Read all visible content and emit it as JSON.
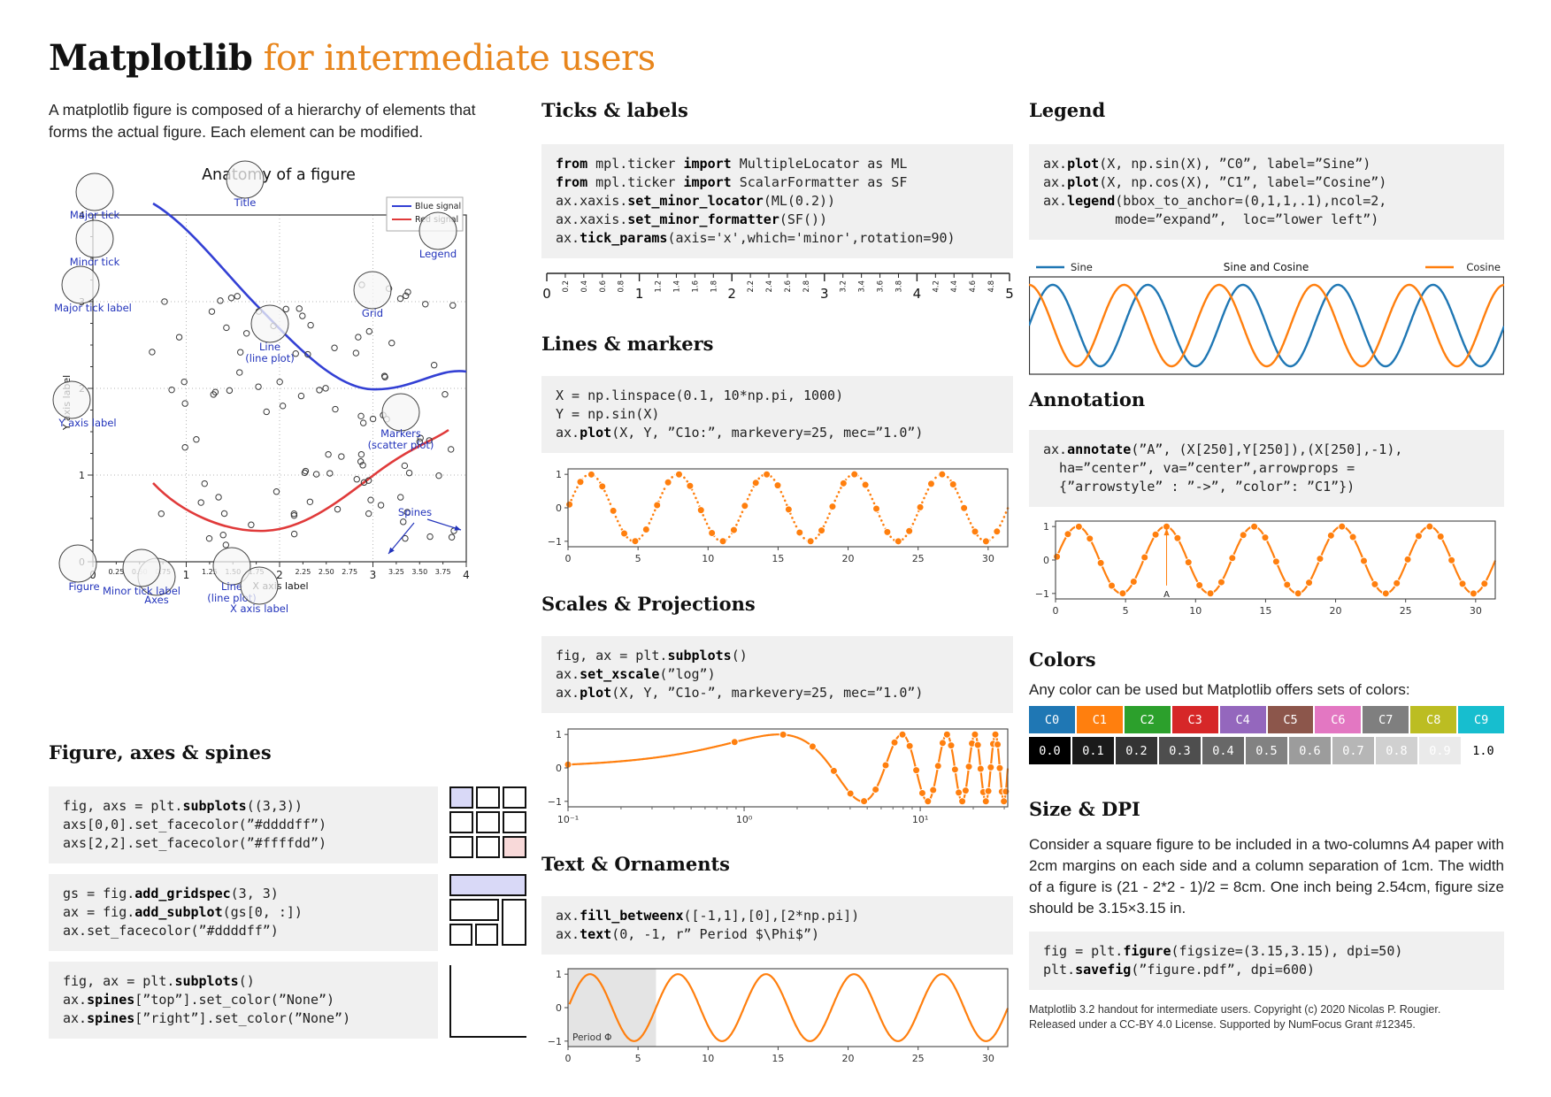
{
  "page": {
    "title_bold": "Matplotlib",
    "title_rest": " for intermediate users",
    "accent_color": "#e8861d",
    "intro": "A matplotlib figure is composed of a hierarchy of elements that forms the actual figure. Each element can be modified."
  },
  "anatomy": {
    "title": "Anatomy of a figure",
    "legend_entries": {
      "blue": "Blue signal",
      "red": "Red signal"
    },
    "legend_colors": {
      "blue": "#3340d4",
      "red": "#e03a3a"
    },
    "xlabel": "X axis label",
    "ylabel": "Y axis label",
    "x_major": [
      "0",
      "1",
      "2",
      "3",
      "4"
    ],
    "x_minor": [
      "0.25",
      "0.50",
      "0.75",
      "1.25",
      "1.50",
      "1.75",
      "2.25",
      "2.50",
      "2.75",
      "3.25",
      "3.50",
      "3.75"
    ],
    "y_major": [
      "4",
      "3",
      "2",
      "1",
      "0"
    ],
    "callouts": {
      "title": "Title",
      "major_tick": "Major tick",
      "minor_tick": "Minor tick",
      "major_tick_label": "Major tick label",
      "y_axis_label": "Y axis label",
      "figure": "Figure",
      "axes": "Axes",
      "line_red": [
        "Line",
        "(line plot)"
      ],
      "line_blue": [
        "Line",
        "(line plot)"
      ],
      "markers": [
        "Markers",
        "(scatter plot)"
      ],
      "grid": "Grid",
      "legend": "Legend",
      "spines": "Spines",
      "minor_tick_label": "Minor tick label",
      "x_axis_label": "X axis label"
    }
  },
  "sections": {
    "fas": {
      "heading": "Figure, axes & spines",
      "blocks": [
        [
          [
            [
              "fig, axs = plt.",
              0
            ],
            [
              "subplots",
              1
            ],
            [
              "((3,3))",
              0
            ]
          ],
          [
            [
              "axs[0,0].set_facecolor(”#ddddff”)",
              0
            ]
          ],
          [
            [
              "axs[2,2].set_facecolor(”#ffffdd”)",
              0
            ]
          ]
        ],
        [
          [
            [
              "gs = fig.",
              0
            ],
            [
              "add_gridspec",
              1
            ],
            [
              "(3, 3)",
              0
            ]
          ],
          [
            [
              "ax = fig.",
              0
            ],
            [
              "add_subplot",
              1
            ],
            [
              "(gs[0, :])",
              0
            ]
          ],
          [
            [
              "ax.set_facecolor(”#ddddff”)",
              0
            ]
          ]
        ],
        [
          [
            [
              "fig, ax = plt.",
              0
            ],
            [
              "subplots",
              1
            ],
            [
              "()",
              0
            ]
          ],
          [
            [
              "ax.",
              0
            ],
            [
              "spines",
              1
            ],
            [
              "[”top”].set_color(”None”)",
              0
            ]
          ],
          [
            [
              "ax.",
              0
            ],
            [
              "spines",
              1
            ],
            [
              "[”right”].set_color(”None”)",
              0
            ]
          ]
        ]
      ],
      "diagram_colors": {
        "lavender": "#d9d9f7",
        "pink": "#f8d9d9"
      }
    },
    "ticks": {
      "heading": "Ticks & labels",
      "code": [
        [
          [
            "from",
            1
          ],
          [
            " mpl.ticker ",
            0
          ],
          [
            "import",
            1
          ],
          [
            " MultipleLocator as ML",
            0
          ]
        ],
        [
          [
            "from",
            1
          ],
          [
            " mpl.ticker ",
            0
          ],
          [
            "import",
            1
          ],
          [
            " ScalarFormatter as SF",
            0
          ]
        ],
        [
          [
            "ax.xaxis.",
            0
          ],
          [
            "set_minor_locator",
            1
          ],
          [
            "(ML(0.2))",
            0
          ]
        ],
        [
          [
            "ax.xaxis.",
            0
          ],
          [
            "set_minor_formatter",
            1
          ],
          [
            "(SF())",
            0
          ]
        ],
        [
          [
            "ax.",
            0
          ],
          [
            "tick_params",
            1
          ],
          [
            "(axis='x',which='minor',rotation=90)",
            0
          ]
        ]
      ]
    },
    "lines": {
      "heading": "Lines & markers",
      "code": [
        [
          [
            "X = np.linspace(0.1, 10*np.pi, 1000)",
            0
          ]
        ],
        [
          [
            "Y = np.sin(X)",
            0
          ]
        ],
        [
          [
            "ax.",
            0
          ],
          [
            "plot",
            1
          ],
          [
            "(X, Y, ”C1o:”, markevery=25, mec=”1.0”)",
            0
          ]
        ]
      ]
    },
    "scales": {
      "heading": "Scales & Projections",
      "code": [
        [
          [
            "fig, ax = plt.",
            0
          ],
          [
            "subplots",
            1
          ],
          [
            "()",
            0
          ]
        ],
        [
          [
            "ax.",
            0
          ],
          [
            "set_xscale",
            1
          ],
          [
            "(”log”)",
            0
          ]
        ],
        [
          [
            "ax.",
            0
          ],
          [
            "plot",
            1
          ],
          [
            "(X, Y, ”C1o-”, markevery=25, mec=”1.0”)",
            0
          ]
        ]
      ]
    },
    "textorn": {
      "heading": "Text & Ornaments",
      "code": [
        [
          [
            "ax.",
            0
          ],
          [
            "fill_betweenx",
            1
          ],
          [
            "([-1,1],[0],[2*np.pi])",
            0
          ]
        ],
        [
          [
            "ax.",
            0
          ],
          [
            "text",
            1
          ],
          [
            "(0, -1, r” Period $\\Phi$”)",
            0
          ]
        ]
      ]
    },
    "legend": {
      "heading": "Legend",
      "code": [
        [
          [
            "ax.",
            0
          ],
          [
            "plot",
            1
          ],
          [
            "(X, np.sin(X), ”C0”, label=”Sine”)",
            0
          ]
        ],
        [
          [
            "ax.",
            0
          ],
          [
            "plot",
            1
          ],
          [
            "(X, np.cos(X), ”C1”, label=”Cosine”)",
            0
          ]
        ],
        [
          [
            "ax.",
            0
          ],
          [
            "legend",
            1
          ],
          [
            "(bbox_to_anchor=(0,1,1,.1),ncol=2,",
            0
          ]
        ],
        [
          [
            "         mode=”expand”,  loc=”lower left”)",
            0
          ]
        ]
      ]
    },
    "annotation": {
      "heading": "Annotation",
      "code": [
        [
          [
            "ax.",
            0
          ],
          [
            "annotate",
            1
          ],
          [
            "(”A”, (X[250],Y[250]),(X[250],-1),",
            0
          ]
        ],
        [
          [
            "  ha=”center”, va=”center”,arrowprops =",
            0
          ]
        ],
        [
          [
            "  {”arrowstyle” : ”->”, ”color”: ”C1”})",
            0
          ]
        ]
      ]
    },
    "colors": {
      "heading": "Colors",
      "note": "Any color can be used but Matplotlib offers sets of colors:",
      "cycle": [
        {
          "label": "C0",
          "hex": "#1f77b4"
        },
        {
          "label": "C1",
          "hex": "#ff7f0e"
        },
        {
          "label": "C2",
          "hex": "#2ca02c"
        },
        {
          "label": "C3",
          "hex": "#d62728"
        },
        {
          "label": "C4",
          "hex": "#9467bd"
        },
        {
          "label": "C5",
          "hex": "#8c564b"
        },
        {
          "label": "C6",
          "hex": "#e377c2"
        },
        {
          "label": "C7",
          "hex": "#7f7f7f"
        },
        {
          "label": "C8",
          "hex": "#bcbd22"
        },
        {
          "label": "C9",
          "hex": "#17becf"
        }
      ],
      "grays": [
        {
          "label": "0.0",
          "hex": "#000000",
          "text": "#ffffff"
        },
        {
          "label": "0.1",
          "hex": "#1a1a1a",
          "text": "#ffffff"
        },
        {
          "label": "0.2",
          "hex": "#343434",
          "text": "#ffffff"
        },
        {
          "label": "0.3",
          "hex": "#4e4e4e",
          "text": "#ffffff"
        },
        {
          "label": "0.4",
          "hex": "#686868",
          "text": "#ffffff"
        },
        {
          "label": "0.5",
          "hex": "#828282",
          "text": "#ffffff"
        },
        {
          "label": "0.6",
          "hex": "#9c9c9c",
          "text": "#ffffff"
        },
        {
          "label": "0.7",
          "hex": "#b6b6b6",
          "text": "#ffffff"
        },
        {
          "label": "0.8",
          "hex": "#d0d0d0",
          "text": "#ffffff"
        },
        {
          "label": "0.9",
          "hex": "#eaeaea",
          "text": "#ffffff"
        },
        {
          "label": "1.0",
          "hex": "#ffffff",
          "text": "#000000"
        }
      ]
    },
    "size": {
      "heading": "Size & DPI",
      "para": "Consider a square figure to be included in a two-columns A4 paper with 2cm margins on each side and a column separation of 1cm.  The width of a figure is (21 - 2*2 - 1)/2 = 8cm. One inch being 2.54cm, figure size should be 3.15×3.15 in.",
      "code": [
        [
          [
            "fig = plt.",
            0
          ],
          [
            "figure",
            1
          ],
          [
            "(figsize=(3.15,3.15), dpi=50)",
            0
          ]
        ],
        [
          [
            "plt.",
            0
          ],
          [
            "savefig",
            1
          ],
          [
            "(”figure.pdf”, dpi=600)",
            0
          ]
        ]
      ]
    }
  },
  "figures": {
    "plot_color": "#ff7f0e",
    "ruler": {
      "major": [
        "0",
        "1",
        "2",
        "3",
        "4",
        "5"
      ],
      "minor": [
        "0.2",
        "0.4",
        "0.6",
        "0.8",
        "1.2",
        "1.4",
        "1.6",
        "1.8",
        "2.2",
        "2.4",
        "2.6",
        "2.8",
        "3.2",
        "3.4",
        "3.6",
        "3.8",
        "4.2",
        "4.4",
        "4.6",
        "4.8"
      ]
    },
    "xy_ticks": {
      "x": [
        "0",
        "5",
        "10",
        "15",
        "20",
        "25",
        "30"
      ],
      "y": [
        "1",
        "0",
        "−1"
      ]
    },
    "log_ticks": {
      "x": [
        "10⁻¹",
        "10⁰",
        "10¹"
      ],
      "y": [
        "1",
        "0",
        "−1"
      ]
    },
    "period_label": "Period Φ",
    "legend_fig": {
      "sine": "Sine",
      "cosine": "Cosine",
      "title": "Sine and Cosine",
      "sine_color": "#1f77b4",
      "cosine_color": "#ff7f0e"
    },
    "annotate_label": "A"
  },
  "footer": {
    "lines": [
      "Matplotlib 3.2 handout for intermediate users.  Copyright (c) 2020 Nicolas P. Rougier.",
      "Released under a CC-BY 4.0 License. Supported by NumFocus Grant #12345."
    ]
  }
}
